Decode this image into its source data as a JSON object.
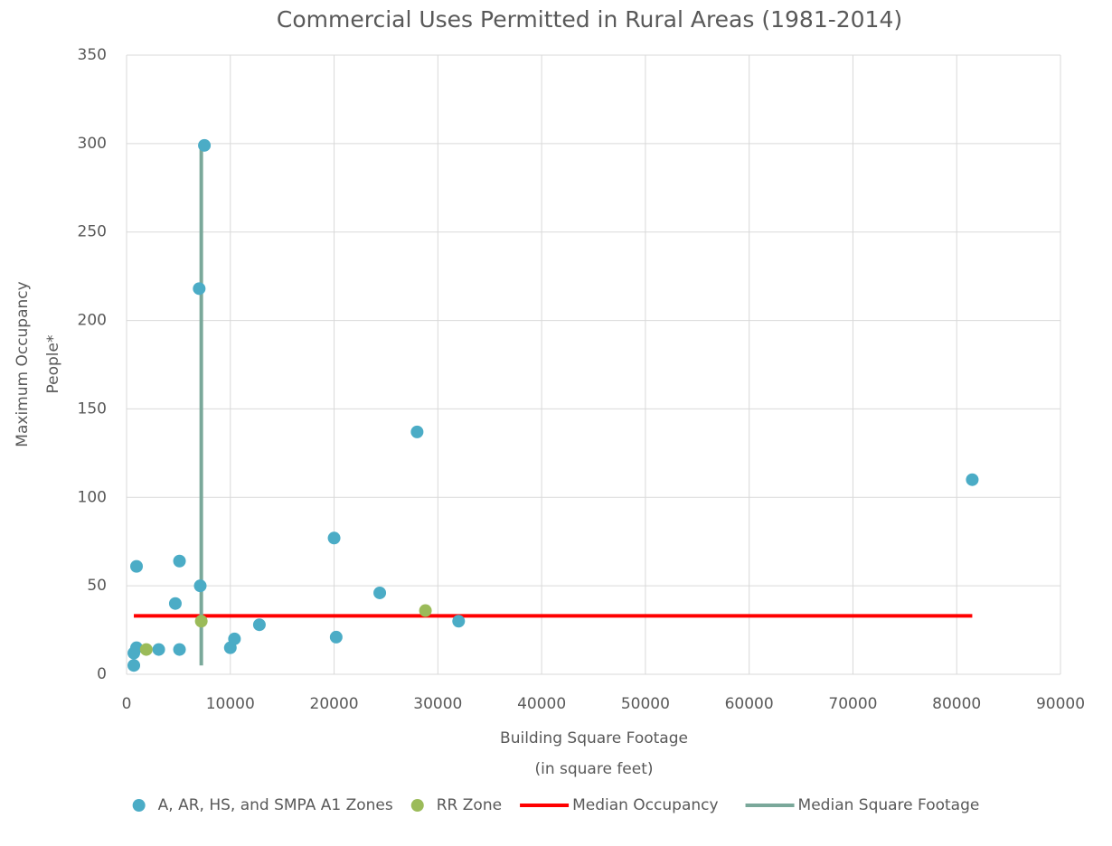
{
  "chart_data": {
    "type": "scatter",
    "title": "Commercial Uses Permitted in Rural Areas (1981-2014)",
    "x_label": [
      "Building Square Footage",
      "(in square feet)"
    ],
    "y_label": [
      "Maximum Occupancy",
      "People*"
    ],
    "xlim": [
      0,
      90000
    ],
    "ylim": [
      0,
      350
    ],
    "xticks": [
      0,
      10000,
      20000,
      30000,
      40000,
      50000,
      60000,
      70000,
      80000,
      90000
    ],
    "yticks": [
      0,
      50,
      100,
      150,
      200,
      250,
      300,
      350
    ],
    "grid": true,
    "legend": "bottom",
    "series": [
      {
        "name": "A, AR, HS, and SMPA A1 Zones",
        "color": "#4bacc6",
        "mode": "markers",
        "x": [
          700,
          700,
          960,
          960,
          3100,
          4700,
          5100,
          5100,
          7000,
          7500,
          7100,
          10000,
          10400,
          12800,
          20000,
          20200,
          24400,
          28000,
          32000,
          81500
        ],
        "values": [
          5,
          12,
          15,
          61,
          14,
          40,
          64,
          14,
          218,
          299,
          50,
          15,
          20,
          28,
          77,
          21,
          46,
          137,
          30,
          110
        ]
      },
      {
        "name": "RR Zone",
        "color": "#9bbb59",
        "mode": "markers",
        "x": [
          1900,
          7200,
          28800
        ],
        "values": [
          14,
          30,
          36
        ]
      },
      {
        "name": "Median Occupancy",
        "color": "#ff0000",
        "mode": "line",
        "x": [
          700,
          81500
        ],
        "values": [
          33,
          33
        ]
      },
      {
        "name": "Median Square Footage",
        "color": "#7aa89a",
        "mode": "line",
        "x": [
          7200,
          7200
        ],
        "values": [
          5,
          299
        ]
      }
    ]
  }
}
